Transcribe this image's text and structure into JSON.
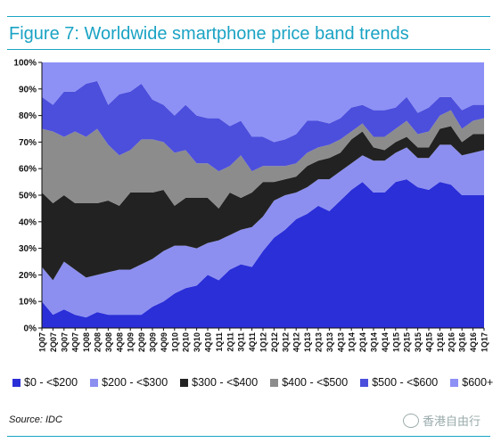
{
  "title": "Figure 7: Worldwide smartphone price band trends",
  "source": "Source: IDC",
  "watermark": "香港自由行",
  "chart_data": {
    "type": "area",
    "stacked": true,
    "x": [
      "1Q07",
      "2Q07",
      "3Q07",
      "4Q07",
      "1Q08",
      "2Q08",
      "3Q08",
      "4Q08",
      "1Q09",
      "2Q09",
      "3Q09",
      "4Q09",
      "1Q10",
      "2Q10",
      "3Q10",
      "4Q10",
      "1Q11",
      "2Q11",
      "3Q11",
      "4Q11",
      "1Q12",
      "2Q12",
      "3Q12",
      "4Q12",
      "1Q13",
      "2Q13",
      "3Q13",
      "4Q13",
      "1Q14",
      "2Q14",
      "3Q14",
      "4Q14",
      "1Q15",
      "2Q15",
      "3Q15",
      "4Q15",
      "1Q16",
      "2Q16",
      "3Q16",
      "4Q16",
      "1Q17"
    ],
    "yticks": [
      "0%",
      "10%",
      "20%",
      "30%",
      "40%",
      "50%",
      "60%",
      "70%",
      "80%",
      "90%",
      "100%"
    ],
    "ylim": [
      0,
      100
    ],
    "colors": [
      "#2b2fd8",
      "#8c8ff0",
      "#222222",
      "#8c8c8c",
      "#4c4fdc",
      "#8d90f5"
    ],
    "series": [
      {
        "name": "$0 - <$200",
        "values": [
          10,
          5,
          7,
          5,
          4,
          6,
          5,
          5,
          5,
          5,
          8,
          10,
          13,
          15,
          16,
          20,
          18,
          22,
          24,
          23,
          29,
          34,
          37,
          41,
          43,
          46,
          44,
          48,
          52,
          55,
          51,
          51,
          55,
          56,
          53,
          52,
          55,
          54,
          50,
          50,
          50
        ]
      },
      {
        "name": "$200 - <$300",
        "values": [
          13,
          13,
          18,
          17,
          15,
          14,
          16,
          17,
          17,
          19,
          18,
          19,
          18,
          16,
          14,
          12,
          15,
          13,
          13,
          15,
          13,
          14,
          13,
          10,
          10,
          10,
          12,
          11,
          10,
          10,
          12,
          12,
          11,
          12,
          11,
          12,
          14,
          15,
          15,
          16,
          17
        ]
      },
      {
        "name": "$300 - <$400",
        "values": [
          28,
          29,
          25,
          25,
          28,
          27,
          27,
          24,
          29,
          27,
          25,
          23,
          15,
          18,
          19,
          17,
          12,
          16,
          12,
          13,
          13,
          7,
          6,
          6,
          8,
          7,
          8,
          7,
          9,
          9,
          5,
          4,
          4,
          4,
          4,
          4,
          6,
          7,
          5,
          7,
          6
        ]
      },
      {
        "name": "$400 - <$500",
        "values": [
          24,
          27,
          22,
          27,
          25,
          28,
          21,
          19,
          16,
          20,
          20,
          18,
          20,
          18,
          13,
          13,
          14,
          10,
          16,
          8,
          6,
          6,
          5,
          5,
          5,
          5,
          5,
          5,
          3,
          3,
          4,
          5,
          5,
          6,
          5,
          6,
          5,
          6,
          5,
          5,
          6
        ]
      },
      {
        "name": "$500 - <$600",
        "values": [
          12,
          10,
          17,
          15,
          20,
          18,
          15,
          23,
          22,
          21,
          15,
          14,
          14,
          17,
          18,
          17,
          20,
          15,
          13,
          13,
          11,
          9,
          10,
          11,
          12,
          10,
          8,
          8,
          9,
          7,
          10,
          10,
          8,
          9,
          8,
          9,
          7,
          5,
          7,
          6,
          5
        ]
      },
      {
        "name": "$600+",
        "values": [
          13,
          16,
          11,
          11,
          8,
          7,
          16,
          12,
          11,
          8,
          14,
          16,
          20,
          16,
          20,
          21,
          21,
          24,
          22,
          28,
          28,
          30,
          29,
          27,
          22,
          22,
          22,
          21,
          17,
          16,
          18,
          18,
          17,
          13,
          19,
          17,
          13,
          13,
          18,
          16,
          16
        ]
      }
    ]
  }
}
